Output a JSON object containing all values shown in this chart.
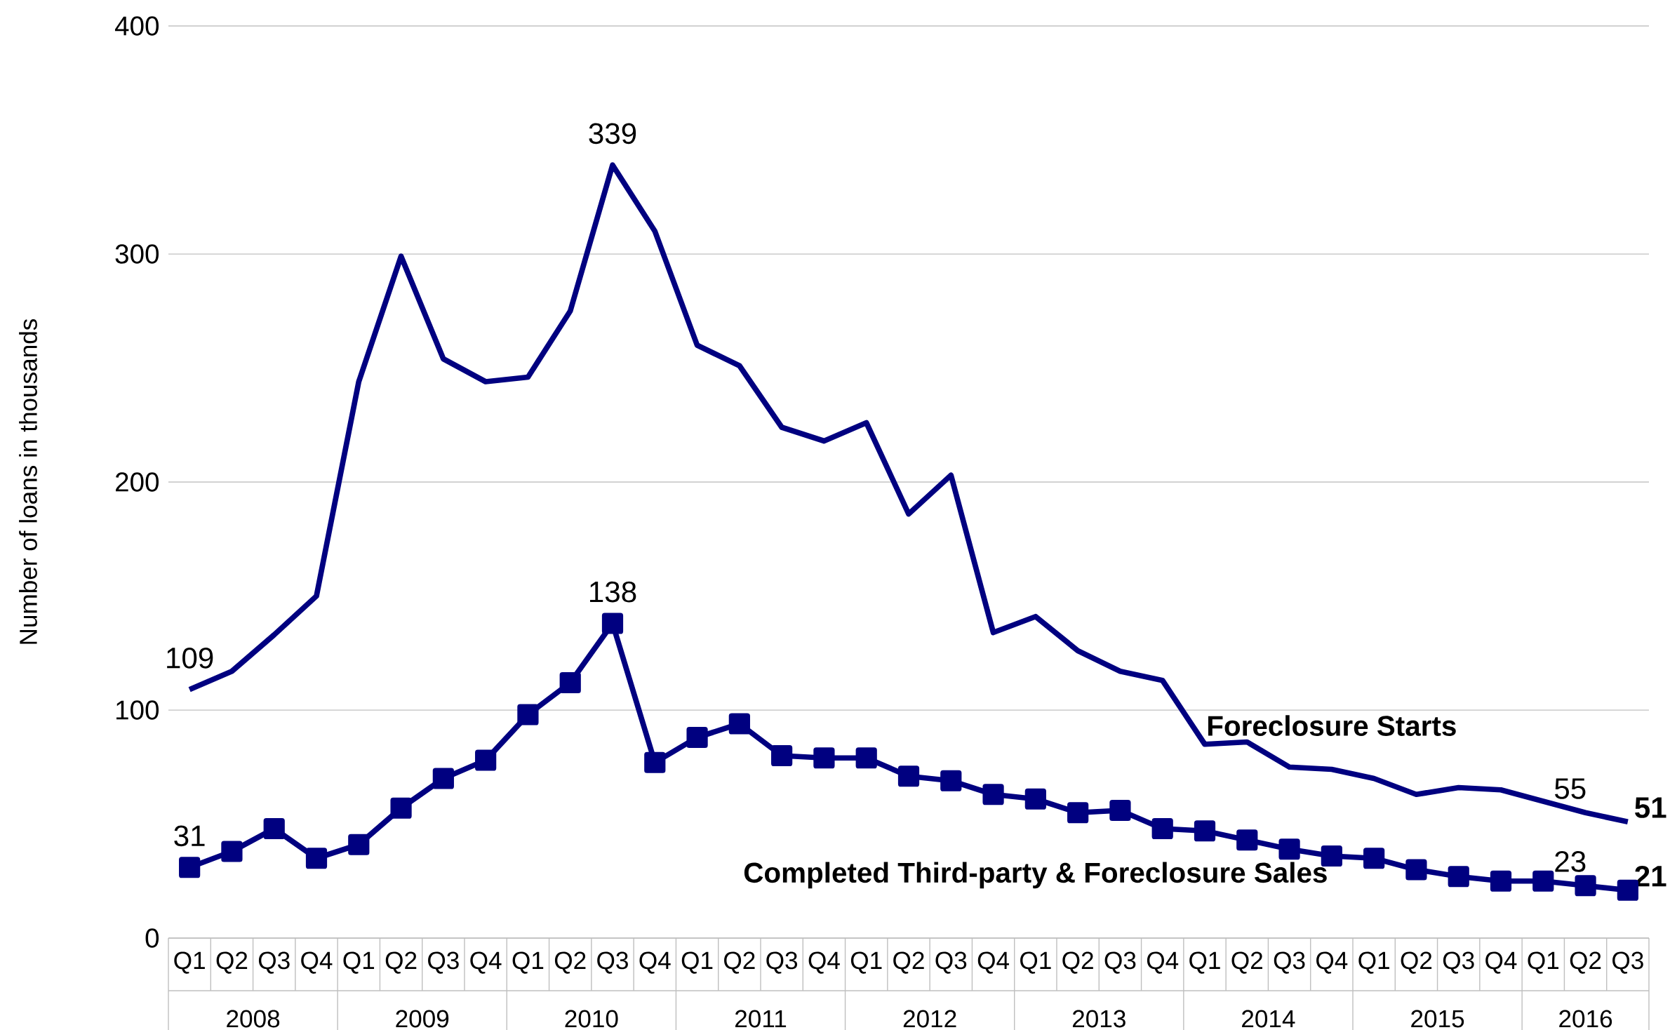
{
  "chart_data": {
    "type": "line",
    "ylabel": "Number of loans in thousands",
    "categories": [
      "Q1",
      "Q2",
      "Q3",
      "Q4",
      "Q1",
      "Q2",
      "Q3",
      "Q4",
      "Q1",
      "Q2",
      "Q3",
      "Q4",
      "Q1",
      "Q2",
      "Q3",
      "Q4",
      "Q1",
      "Q2",
      "Q3",
      "Q4",
      "Q1",
      "Q2",
      "Q3",
      "Q4",
      "Q1",
      "Q2",
      "Q3",
      "Q4",
      "Q1",
      "Q2",
      "Q3",
      "Q4",
      "Q1",
      "Q2",
      "Q3"
    ],
    "annotations": [
      "2008",
      "2009",
      "2010",
      "2011",
      "2012",
      "2013",
      "2014",
      "2015",
      "2016"
    ],
    "series": [
      {
        "name": "Foreclosure Starts",
        "color": "#000080",
        "marker": "none",
        "values": [
          109,
          117,
          133,
          150,
          244,
          299,
          254,
          244,
          246,
          275,
          339,
          310,
          260,
          251,
          224,
          218,
          226,
          186,
          203,
          134,
          141,
          126,
          117,
          113,
          85,
          86,
          75,
          74,
          70,
          63,
          66,
          65,
          60,
          55,
          51
        ],
        "value_labels": [
          "109",
          null,
          null,
          null,
          null,
          null,
          null,
          null,
          null,
          null,
          "339",
          null,
          null,
          null,
          null,
          null,
          null,
          null,
          null,
          null,
          null,
          null,
          null,
          null,
          null,
          null,
          null,
          null,
          null,
          null,
          null,
          null,
          null,
          "55",
          "**51**"
        ]
      },
      {
        "name": "Completed Third-party & Foreclosure Sales",
        "color": "#000080",
        "marker": "square",
        "values": [
          31,
          38,
          48,
          35,
          41,
          57,
          70,
          78,
          98,
          112,
          138,
          77,
          88,
          94,
          80,
          79,
          79,
          71,
          69,
          63,
          61,
          55,
          56,
          48,
          47,
          43,
          39,
          36,
          35,
          30,
          27,
          25,
          25,
          23,
          21
        ],
        "value_labels": [
          "31",
          null,
          null,
          null,
          null,
          null,
          null,
          null,
          null,
          null,
          "138",
          null,
          null,
          null,
          null,
          null,
          null,
          null,
          null,
          null,
          null,
          null,
          null,
          null,
          null,
          null,
          null,
          null,
          null,
          null,
          null,
          null,
          null,
          "23",
          "**21**"
        ]
      }
    ],
    "ylim": [
      0,
      400
    ],
    "yticks": [
      0,
      100,
      200,
      300,
      400
    ],
    "grid": "y",
    "line_style": "solid"
  }
}
